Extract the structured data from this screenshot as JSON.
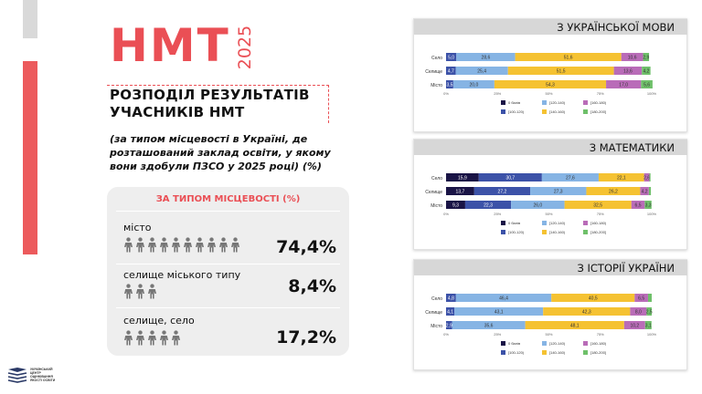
{
  "header": {
    "title": "НМТ",
    "year": "2025",
    "headline_line1": "РОЗПОДІЛ РЕЗУЛЬТАТІВ",
    "headline_line2": "УЧАСНИКІВ НМТ",
    "subtitle": "(за типом місцевості в Україні, де розташований заклад освіти, у якому вони здобули ПЗСО у 2025 році)  (%)"
  },
  "settlement": {
    "heading": "ЗА ТИПОМ МІСЦЕВОСТІ (%)",
    "rows": [
      {
        "label": "місто",
        "percent": "74,4%",
        "icons": 10
      },
      {
        "label": "селище міського типу",
        "percent": "8,4%",
        "icons": 3
      },
      {
        "label": "селище, село",
        "percent": "17,2%",
        "icons": 5
      }
    ]
  },
  "logo": {
    "line1": "УКРАЇНСЬКИЙ",
    "line2": "ЦЕНТР",
    "line3": "ОЦІНЮВАННЯ",
    "line4": "ЯКОСТІ ОСВІТИ"
  },
  "colors": {
    "accent_red": "#ea4f55",
    "series": [
      "#1a1446",
      "#3c52a8",
      "#86b4e4",
      "#f5c232",
      "#b96cb8",
      "#6fc06a"
    ]
  },
  "chart_data": [
    {
      "type": "bar",
      "orientation": "horizontal",
      "stacked": true,
      "title": "З УКРАЇНСЬКОЇ МОВИ",
      "categories": [
        "Село",
        "Селище",
        "Місто"
      ],
      "xlim": [
        0,
        100
      ],
      "xticks": [
        "0%",
        "25%",
        "50%",
        "75%",
        "100%"
      ],
      "legend_position": "bottom",
      "series": [
        {
          "name": "0 балів",
          "values": [
            0,
            0,
            0
          ],
          "labels": [
            "",
            "",
            ""
          ]
        },
        {
          "name": "[100-120)",
          "values": [
            5.0,
            4.7,
            3.5
          ],
          "labels": [
            "5,0",
            "4,7",
            "3,5"
          ]
        },
        {
          "name": "[120-140)",
          "values": [
            28.6,
            25.4,
            20.0
          ],
          "labels": [
            "28,6",
            "25,4",
            "20,0"
          ]
        },
        {
          "name": "[140-160)",
          "values": [
            51.6,
            51.5,
            54.3
          ],
          "labels": [
            "51,6",
            "51,5",
            "54,3"
          ]
        },
        {
          "name": "[160-180)",
          "values": [
            10.6,
            13.6,
            17.0
          ],
          "labels": [
            "10,6",
            "13,6",
            "17,0"
          ]
        },
        {
          "name": "[180-200]",
          "values": [
            2.9,
            4.2,
            5.6
          ],
          "labels": [
            "2,9",
            "4,2",
            "5,6"
          ]
        }
      ]
    },
    {
      "type": "bar",
      "orientation": "horizontal",
      "stacked": true,
      "title": "З МАТЕМАТИКИ",
      "categories": [
        "Село",
        "Селище",
        "Місто"
      ],
      "xlim": [
        0,
        100
      ],
      "xticks": [
        "0%",
        "25%",
        "50%",
        "75%",
        "100%"
      ],
      "legend_position": "bottom",
      "series": [
        {
          "name": "0 балів",
          "values": [
            15.9,
            13.7,
            9.3
          ],
          "labels": [
            "15,9",
            "13,7",
            "9,3"
          ]
        },
        {
          "name": "[100-120)",
          "values": [
            30.7,
            27.2,
            22.3
          ],
          "labels": [
            "30,7",
            "27,2",
            "22,3"
          ]
        },
        {
          "name": "[120-140)",
          "values": [
            27.6,
            27.3,
            26.0
          ],
          "labels": [
            "27,6",
            "27,3",
            "26,0"
          ]
        },
        {
          "name": "[140-160)",
          "values": [
            22.1,
            26.2,
            32.5
          ],
          "labels": [
            "22,1",
            "26,2",
            "32,5"
          ]
        },
        {
          "name": "[160-180)",
          "values": [
            2.6,
            4.2,
            6.5
          ],
          "labels": [
            "2,6",
            "4,2",
            "6,5"
          ]
        },
        {
          "name": "[180-200]",
          "values": [
            0.5,
            1.0,
            3.3
          ],
          "labels": [
            "",
            "",
            "3,3"
          ]
        }
      ]
    },
    {
      "type": "bar",
      "orientation": "horizontal",
      "stacked": true,
      "title": "З ІСТОРІЇ УКРАЇНИ",
      "categories": [
        "Село",
        "Селище",
        "Місто"
      ],
      "xlim": [
        0,
        100
      ],
      "xticks": [
        "0%",
        "25%",
        "50%",
        "75%",
        "100%"
      ],
      "legend_position": "bottom",
      "series": [
        {
          "name": "0 балів",
          "values": [
            0,
            0,
            0
          ],
          "labels": [
            "",
            "",
            ""
          ]
        },
        {
          "name": "[100-120)",
          "values": [
            4.8,
            4.1,
            2.9
          ],
          "labels": [
            "4,8",
            "4,1",
            "2,9"
          ]
        },
        {
          "name": "[120-140)",
          "values": [
            46.4,
            43.1,
            35.6
          ],
          "labels": [
            "46,4",
            "43,1",
            "35,6"
          ]
        },
        {
          "name": "[140-160)",
          "values": [
            40.5,
            42.3,
            48.1
          ],
          "labels": [
            "40,5",
            "42,3",
            "48,1"
          ]
        },
        {
          "name": "[160-180)",
          "values": [
            6.5,
            8.0,
            10.2
          ],
          "labels": [
            "6,5",
            "8,0",
            "10,2"
          ]
        },
        {
          "name": "[180-200]",
          "values": [
            1.8,
            2.5,
            3.1
          ],
          "labels": [
            "",
            "2,5",
            "3,1"
          ]
        }
      ]
    }
  ]
}
